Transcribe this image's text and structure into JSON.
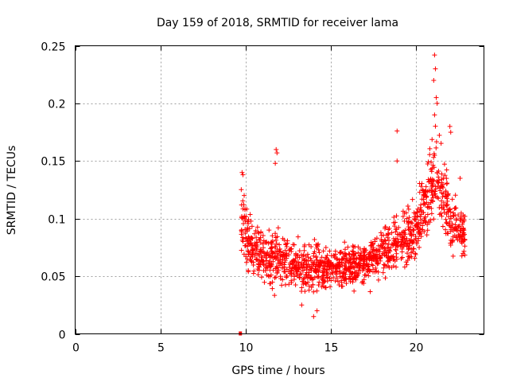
{
  "chart_data": {
    "type": "scatter",
    "title": "Day 159 of 2018, SRMTID for receiver lama",
    "xlabel": "GPS time / hours",
    "ylabel": "SRMTID / TECUs",
    "xlim": [
      0,
      24
    ],
    "ylim": [
      0,
      0.25
    ],
    "xticks": [
      0,
      5,
      10,
      15,
      20
    ],
    "xtick_labels": [
      "0",
      "5",
      "10",
      "15",
      "20"
    ],
    "yticks": [
      0,
      0.05,
      0.1,
      0.15,
      0.2,
      0.25
    ],
    "ytick_labels": [
      "0",
      "0.05",
      "0.1",
      "0.15",
      "0.2",
      "0.25"
    ],
    "grid": true,
    "marker": "+",
    "color": "#ff0000",
    "x_range_of_data": [
      9.7,
      22.9
    ],
    "baseline_points": {
      "x": [
        9.7
      ],
      "y": [
        0.0
      ]
    },
    "series": [
      {
        "name": "SRMTID",
        "envelope_x": [
          9.75,
          10.0,
          10.5,
          11.0,
          11.5,
          11.8,
          12.0,
          12.5,
          13.0,
          13.5,
          14.0,
          14.5,
          15.0,
          15.5,
          16.0,
          16.5,
          17.0,
          17.5,
          18.0,
          18.5,
          19.0,
          19.5,
          20.0,
          20.5,
          21.0,
          21.2,
          21.5,
          22.0,
          22.5,
          22.9
        ],
        "envelope_median": [
          0.095,
          0.085,
          0.075,
          0.07,
          0.065,
          0.07,
          0.065,
          0.062,
          0.06,
          0.058,
          0.057,
          0.057,
          0.058,
          0.058,
          0.058,
          0.058,
          0.06,
          0.065,
          0.07,
          0.075,
          0.08,
          0.085,
          0.09,
          0.11,
          0.13,
          0.15,
          0.12,
          0.1,
          0.09,
          0.085
        ],
        "envelope_spread": [
          0.04,
          0.035,
          0.03,
          0.03,
          0.03,
          0.04,
          0.03,
          0.025,
          0.025,
          0.025,
          0.025,
          0.022,
          0.022,
          0.022,
          0.022,
          0.022,
          0.025,
          0.025,
          0.028,
          0.03,
          0.03,
          0.032,
          0.035,
          0.04,
          0.05,
          0.06,
          0.05,
          0.04,
          0.03,
          0.02
        ],
        "outliers": [
          {
            "x": 9.8,
            "y": 0.14
          },
          {
            "x": 9.85,
            "y": 0.138
          },
          {
            "x": 11.8,
            "y": 0.16
          },
          {
            "x": 11.85,
            "y": 0.157
          },
          {
            "x": 11.75,
            "y": 0.148
          },
          {
            "x": 18.9,
            "y": 0.176
          },
          {
            "x": 18.9,
            "y": 0.15
          },
          {
            "x": 21.1,
            "y": 0.242
          },
          {
            "x": 21.15,
            "y": 0.23
          },
          {
            "x": 21.05,
            "y": 0.22
          },
          {
            "x": 21.2,
            "y": 0.205
          },
          {
            "x": 21.25,
            "y": 0.2
          },
          {
            "x": 21.1,
            "y": 0.19
          },
          {
            "x": 22.0,
            "y": 0.18
          },
          {
            "x": 22.05,
            "y": 0.175
          },
          {
            "x": 22.6,
            "y": 0.135
          },
          {
            "x": 14.0,
            "y": 0.015
          },
          {
            "x": 14.2,
            "y": 0.02
          },
          {
            "x": 13.3,
            "y": 0.025
          }
        ]
      }
    ]
  }
}
